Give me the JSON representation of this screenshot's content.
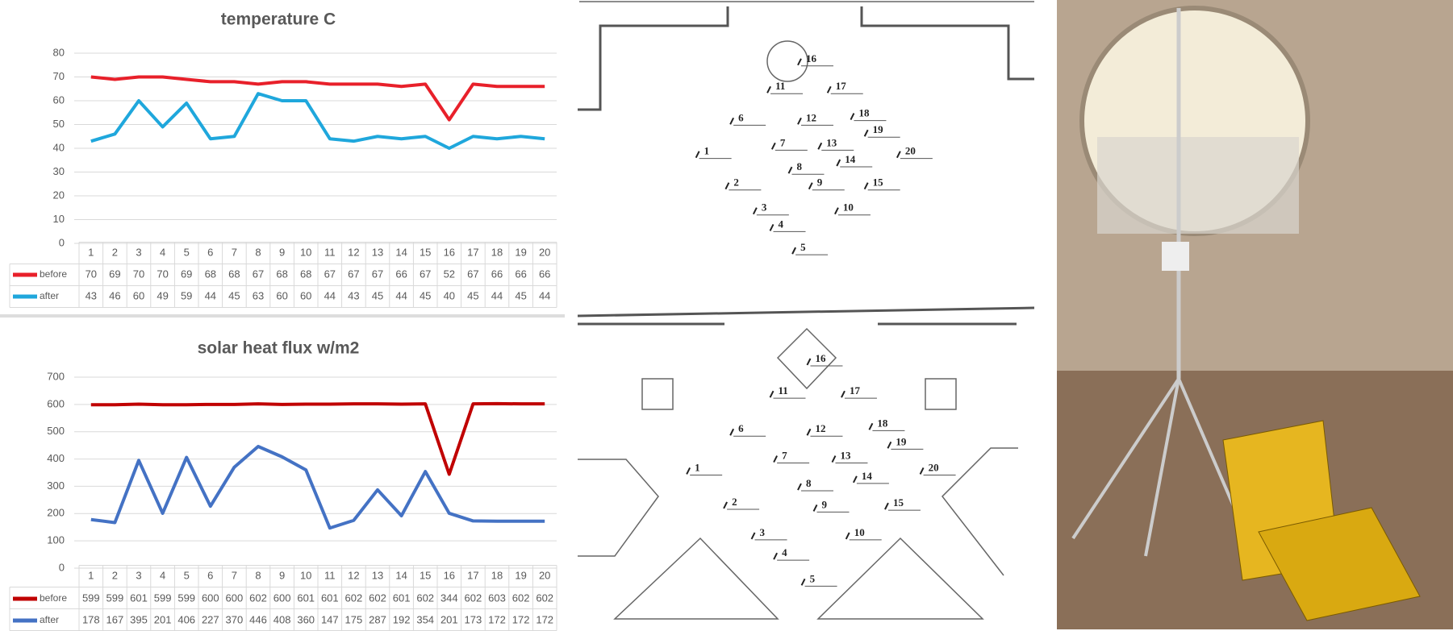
{
  "chart_data": [
    {
      "type": "line",
      "title": "temperature C",
      "categories": [
        "1",
        "2",
        "3",
        "4",
        "5",
        "6",
        "7",
        "8",
        "9",
        "10",
        "11",
        "12",
        "13",
        "14",
        "15",
        "16",
        "17",
        "18",
        "19",
        "20"
      ],
      "series": [
        {
          "name": "before",
          "color": "#e8202a",
          "values": [
            70,
            69,
            70,
            70,
            69,
            68,
            68,
            67,
            68,
            68,
            67,
            67,
            67,
            66,
            67,
            52,
            67,
            66,
            66,
            66
          ]
        },
        {
          "name": "after",
          "color": "#1fa7dc",
          "values": [
            43,
            46,
            60,
            49,
            59,
            44,
            45,
            63,
            60,
            60,
            44,
            43,
            45,
            44,
            45,
            40,
            45,
            44,
            45,
            44
          ]
        }
      ],
      "ylim": [
        0,
        80
      ],
      "yticks": [
        0,
        10,
        20,
        30,
        40,
        50,
        60,
        70,
        80
      ],
      "grid": true
    },
    {
      "type": "line",
      "title": "solar  heat flux w/m2",
      "categories": [
        "1",
        "2",
        "3",
        "4",
        "5",
        "6",
        "7",
        "8",
        "9",
        "10",
        "11",
        "12",
        "13",
        "14",
        "15",
        "16",
        "17",
        "18",
        "19",
        "20"
      ],
      "series": [
        {
          "name": "before",
          "color": "#c00000",
          "values": [
            599,
            599,
            601,
            599,
            599,
            600,
            600,
            602,
            600,
            601,
            601,
            602,
            602,
            601,
            602,
            344,
            602,
            603,
            602,
            602
          ]
        },
        {
          "name": "after",
          "color": "#4472c4",
          "values": [
            178,
            167,
            395,
            201,
            406,
            227,
            370,
            446,
            408,
            360,
            147,
            175,
            287,
            192,
            354,
            201,
            173,
            172,
            172,
            172
          ]
        }
      ],
      "ylim": [
        0,
        700
      ],
      "yticks": [
        0,
        100,
        200,
        300,
        400,
        500,
        600,
        700
      ],
      "grid": true
    }
  ],
  "plans": [
    {
      "labels": [
        "1",
        "2",
        "3",
        "4",
        "5",
        "6",
        "7",
        "8",
        "9",
        "10",
        "11",
        "12",
        "13",
        "14",
        "15",
        "16",
        "17",
        "18",
        "19",
        "20"
      ]
    },
    {
      "labels": [
        "1",
        "2",
        "3",
        "4",
        "5",
        "6",
        "7",
        "8",
        "9",
        "10",
        "11",
        "12",
        "13",
        "14",
        "15",
        "16",
        "17",
        "18",
        "19",
        "20"
      ]
    }
  ]
}
